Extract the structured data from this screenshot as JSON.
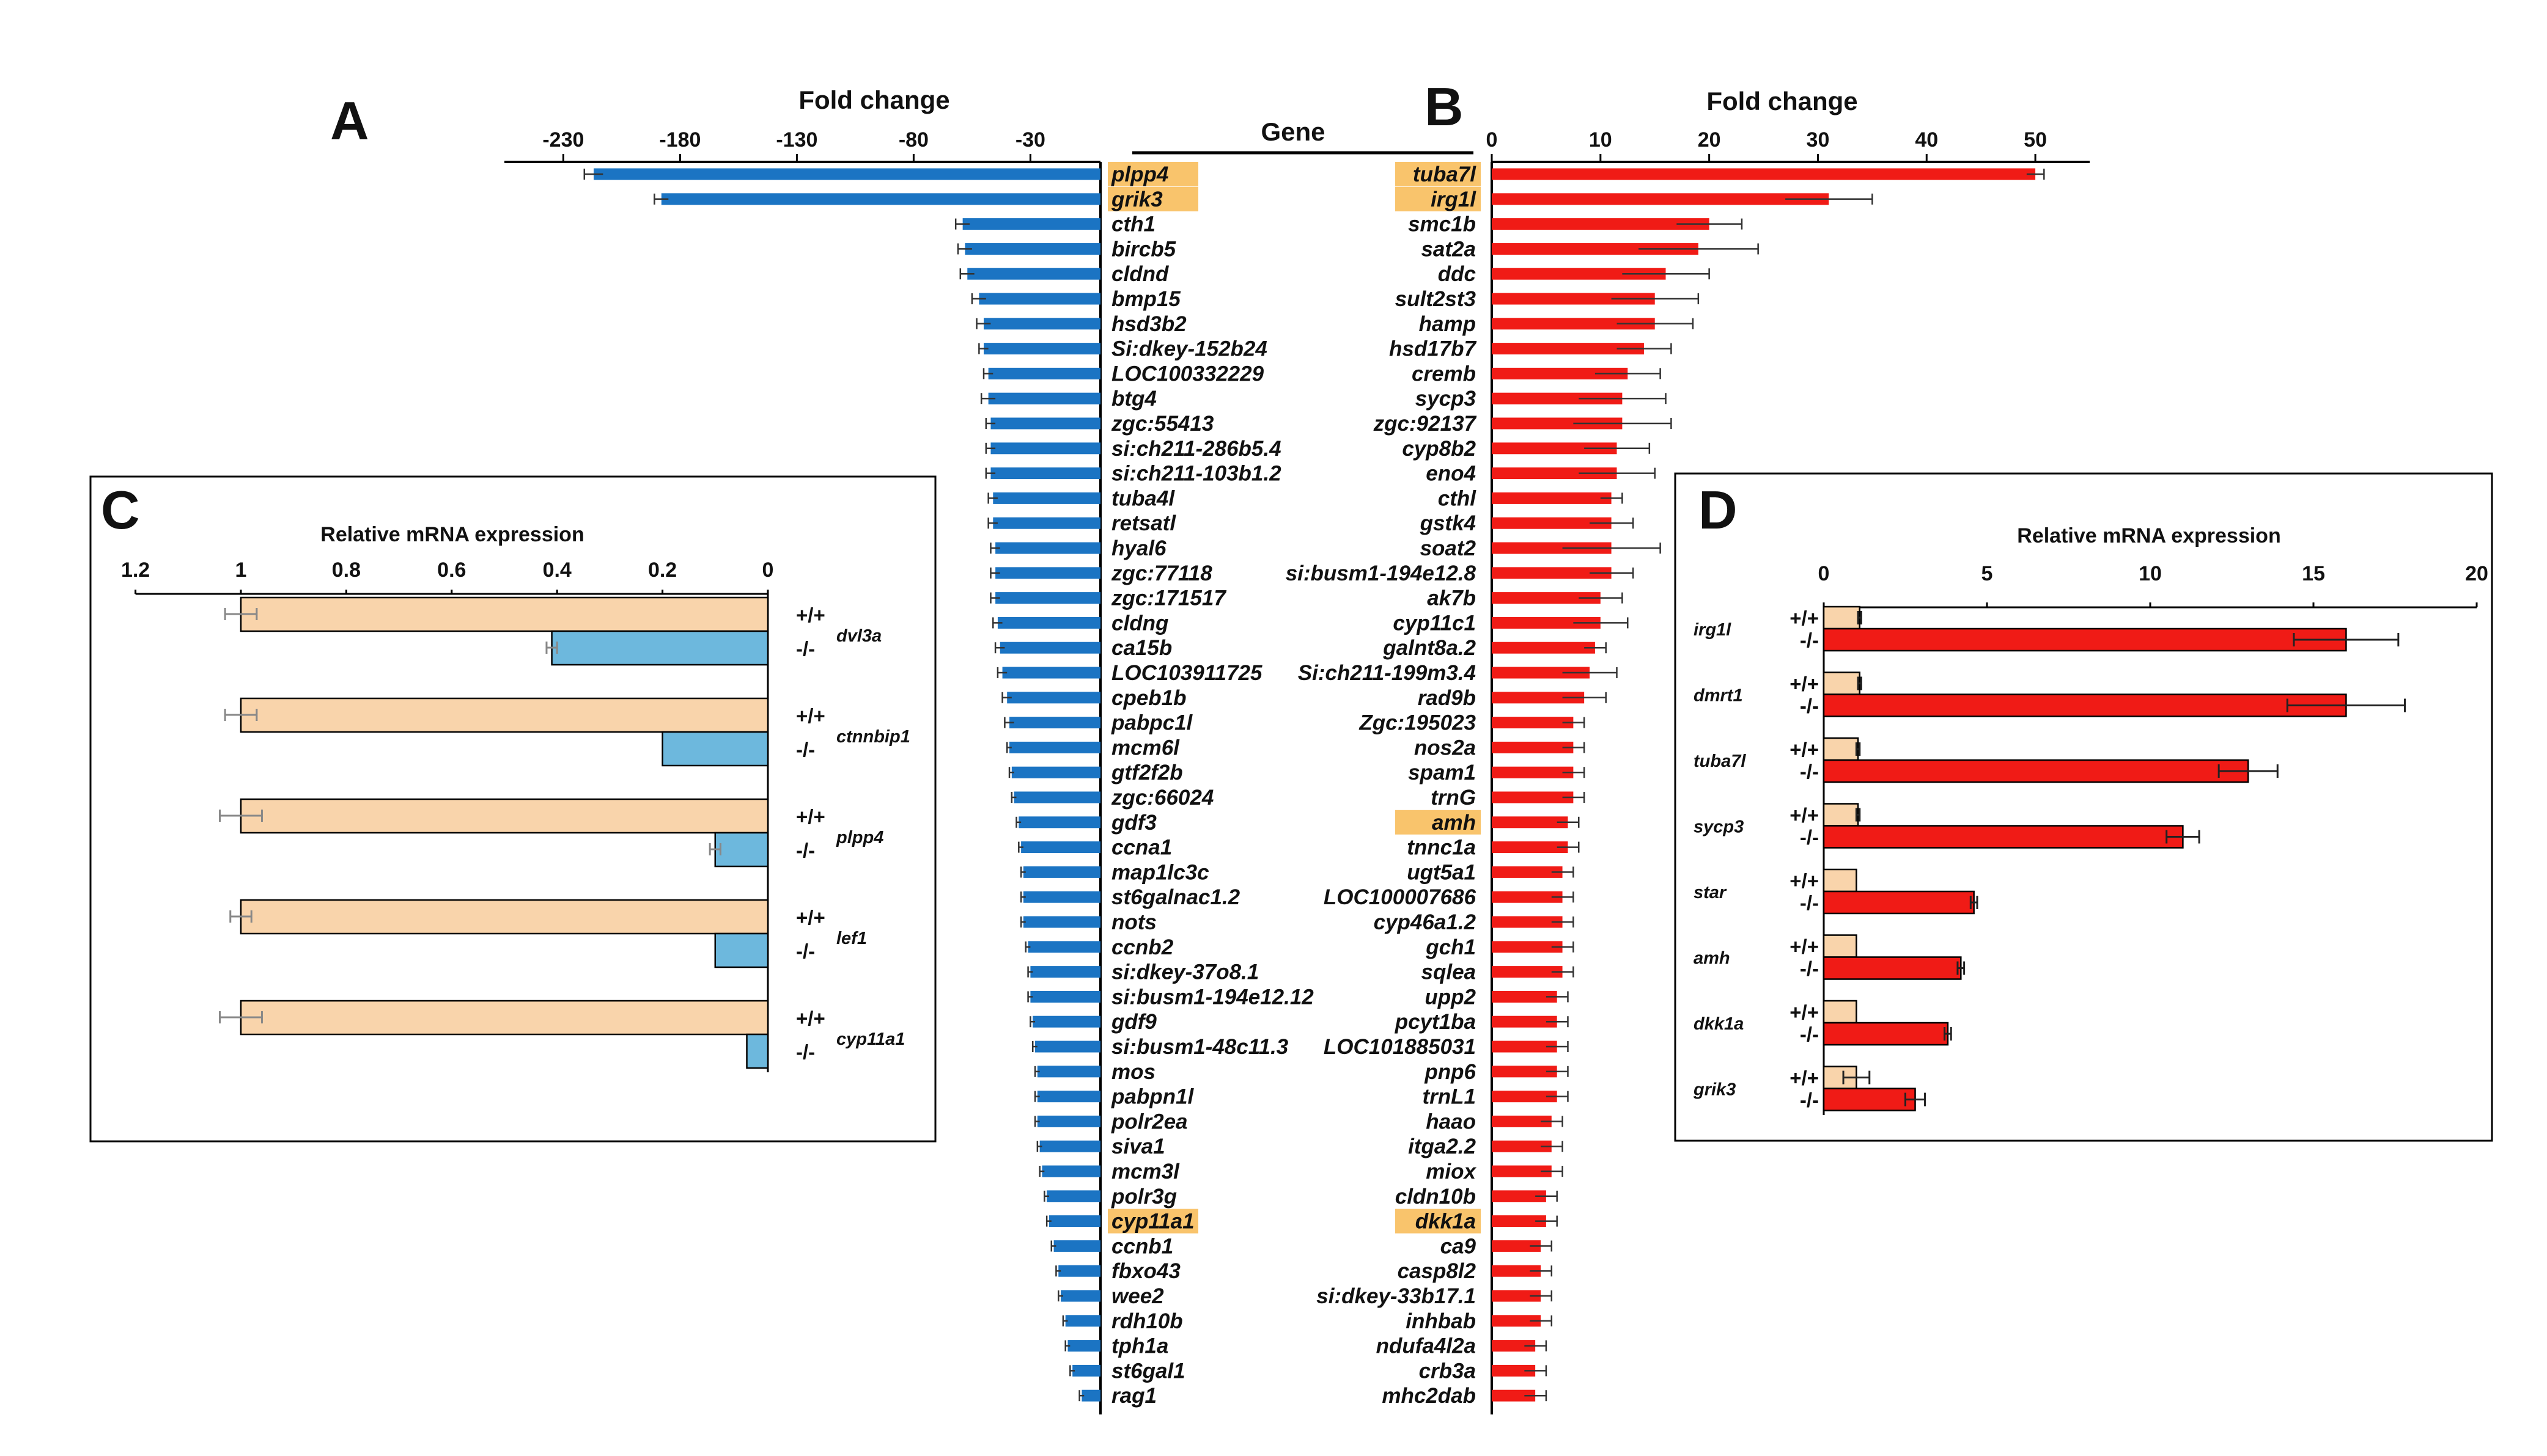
{
  "chart_data": [
    {
      "panel": "A",
      "type": "bar",
      "orientation": "horizontal",
      "title": "Fold change",
      "subtitle": "Gene",
      "color": "#1b74c3",
      "xlim": [
        -250,
        0
      ],
      "ticks": [
        -230,
        -180,
        -130,
        -80,
        -30
      ],
      "highlighted": [
        "plpp4",
        "grik3",
        "cyp11a1"
      ],
      "highlight_color": "#f9c46c",
      "categories": [
        "plpp4",
        "grik3",
        "cth1",
        "bircb5",
        "cldnd",
        "bmp15",
        "hsd3b2",
        "Si:dkey-152b24",
        "LOC100332229",
        "btg4",
        "zgc:55413",
        "si:ch211-286b5.4",
        "si:ch211-103b1.2",
        "tuba4l",
        "retsatl",
        "hyal6",
        "zgc:77118",
        "zgc:171517",
        "cldng",
        "ca15b",
        "LOC103911725",
        "cpeb1b",
        "pabpc1l",
        "mcm6l",
        "gtf2f2b",
        "zgc:66024",
        "gdf3",
        "ccna1",
        "map1lc3c",
        "st6galnac1.2",
        "nots",
        "ccnb2",
        "si:dkey-37o8.1",
        "si:busm1-194e12.12",
        "gdf9",
        "si:busm1-48c11.3",
        "mos",
        "pabpn1l",
        "polr2ea",
        "siva1",
        "mcm3l",
        "polr3g",
        "cyp11a1",
        "ccnb1",
        "fbxo43",
        "wee2",
        "rdh10b",
        "tph1a",
        "st6gal1",
        "rag1"
      ],
      "values": [
        -217,
        -188,
        -59,
        -58,
        -57,
        -52,
        -50,
        -50,
        -48,
        -48,
        -47,
        -47,
        -47,
        -46,
        -46,
        -45,
        -45,
        -45,
        -44,
        -43,
        -42,
        -40,
        -39,
        -39,
        -38,
        -37,
        -35,
        -34,
        -33,
        -33,
        -33,
        -31,
        -30,
        -30,
        -29,
        -28,
        -27,
        -27,
        -27,
        -26,
        -25,
        -23,
        -22,
        -20,
        -18,
        -17,
        -15,
        -14,
        -12,
        -8
      ],
      "errors": [
        4,
        3,
        3,
        3,
        3,
        3,
        3,
        2,
        2,
        3,
        2,
        2,
        2,
        2,
        2,
        2,
        2,
        2,
        2,
        2,
        2,
        2,
        2,
        1,
        1,
        1,
        1,
        1,
        1,
        1,
        1,
        1,
        1,
        1,
        1,
        1,
        1,
        1,
        1,
        1,
        1,
        1,
        1,
        1,
        1,
        1,
        1,
        1,
        1,
        1
      ]
    },
    {
      "panel": "B",
      "type": "bar",
      "orientation": "horizontal",
      "title": "Fold change",
      "color": "#f01b16",
      "xlim": [
        0,
        55
      ],
      "ticks": [
        0,
        10,
        20,
        30,
        40,
        50
      ],
      "highlighted": [
        "tuba7l",
        "irg1l",
        "amh",
        "dkk1a"
      ],
      "highlight_color": "#f9c46c",
      "categories": [
        "tuba7l",
        "irg1l",
        "smc1b",
        "sat2a",
        "ddc",
        "sult2st3",
        "hamp",
        "hsd17b7",
        "cremb",
        "sycp3",
        "zgc:92137",
        "cyp8b2",
        "eno4",
        "cthl",
        "gstk4",
        "soat2",
        "si:busm1-194e12.8",
        "ak7b",
        "cyp11c1",
        "galnt8a.2",
        "Si:ch211-199m3.4",
        "rad9b",
        "Zgc:195023",
        "nos2a",
        "spam1",
        "trnG",
        "amh",
        "tnnc1a",
        "ugt5a1",
        "LOC100007686",
        "cyp46a1.2",
        "gch1",
        "sqlea",
        "upp2",
        "pcyt1ba",
        "LOC101885031",
        "pnp6",
        "trnL1",
        "haao",
        "itga2.2",
        "miox",
        "cldn10b",
        "dkk1a",
        "ca9",
        "casp8l2",
        "si:dkey-33b17.1",
        "inhbab",
        "ndufa4l2a",
        "crb3a",
        "mhc2dab"
      ],
      "values": [
        50,
        31,
        20,
        19,
        16,
        15,
        15,
        14,
        12.5,
        12,
        12,
        11.5,
        11.5,
        11,
        11,
        11,
        11,
        10,
        10,
        9.5,
        9,
        8.5,
        7.5,
        7.5,
        7.5,
        7.5,
        7,
        7,
        6.5,
        6.5,
        6.5,
        6.5,
        6.5,
        6,
        6,
        6,
        6,
        6,
        5.5,
        5.5,
        5.5,
        5,
        5,
        4.5,
        4.5,
        4.5,
        4.5,
        4,
        4,
        4
      ],
      "errors": [
        0.8,
        4,
        3,
        5.5,
        4,
        4,
        3.5,
        2.5,
        3,
        4,
        4.5,
        3,
        3.5,
        1,
        2,
        4.5,
        2,
        2,
        2.5,
        1,
        2.5,
        2,
        1,
        1,
        1,
        1,
        1,
        1,
        1,
        1,
        1,
        1,
        1,
        1,
        1,
        1,
        1,
        1,
        1,
        1,
        1,
        1,
        1,
        1,
        1,
        1,
        1,
        1,
        1,
        1
      ]
    },
    {
      "panel": "C",
      "type": "bar",
      "orientation": "horizontal",
      "title": "Relative mRNA expression",
      "xlim": [
        0,
        1.2
      ],
      "ticks": [
        1.2,
        1,
        0.8,
        0.6,
        0.4,
        0.2,
        0
      ],
      "reversed_x": true,
      "genotype_labels": [
        "+/+",
        "-/-"
      ],
      "series_colors": [
        "#f9d4ab",
        "#6db8dd"
      ],
      "genes": [
        "dvl3a",
        "ctnnbip1",
        "plpp4",
        "lef1",
        "cyp11a1"
      ],
      "series": [
        {
          "name": "+/+",
          "values": [
            1,
            1,
            1,
            1,
            1
          ],
          "errors": [
            0.03,
            0.03,
            0.04,
            0.02,
            0.04
          ]
        },
        {
          "name": "-/-",
          "values": [
            0.41,
            0.2,
            0.1,
            0.1,
            0.04
          ],
          "errors": [
            0.01,
            0,
            0.01,
            0,
            0
          ]
        }
      ]
    },
    {
      "panel": "D",
      "type": "bar",
      "orientation": "horizontal",
      "title": "Relative mRNA expression",
      "xlim": [
        0,
        20
      ],
      "ticks": [
        0,
        5,
        10,
        15,
        20
      ],
      "genotype_labels": [
        "+/+",
        "-/-"
      ],
      "series_colors": [
        "#f9d4ab",
        "#f01b16"
      ],
      "genes": [
        "irg1l",
        "dmrt1",
        "tuba7l",
        "sycp3",
        "star",
        "amh",
        "dkk1a",
        "grik3"
      ],
      "series": [
        {
          "name": "+/+",
          "values": [
            1.1,
            1.1,
            1.05,
            1.05,
            1,
            1,
            1,
            1.0
          ],
          "errors": [
            0.05,
            0.05,
            0.05,
            0.05,
            0,
            0,
            0,
            0.4
          ]
        },
        {
          "name": "-/-",
          "values": [
            16,
            16,
            13,
            11,
            4.6,
            4.2,
            3.8,
            2.8
          ],
          "errors": [
            1.6,
            1.8,
            0.9,
            0.5,
            0.1,
            0.1,
            0.1,
            0.3
          ]
        }
      ]
    }
  ]
}
